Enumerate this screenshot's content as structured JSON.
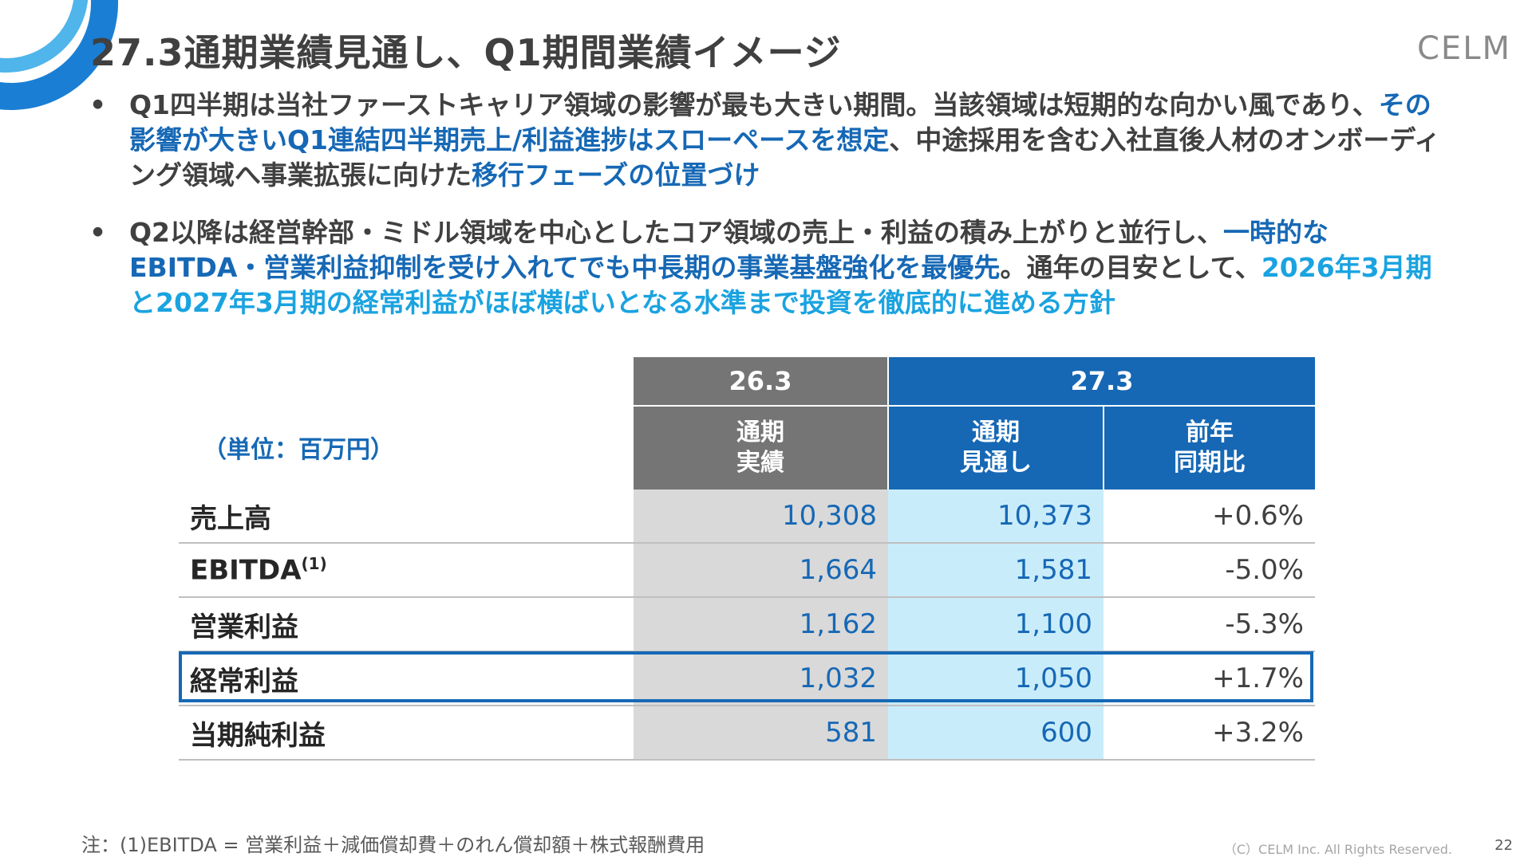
{
  "title": "27.3通期業績見通し、Q1期間業績イメージ",
  "logo_text": "CELM",
  "bullets": [
    {
      "marker": "•",
      "parts": [
        {
          "text": "Q1四半期は当社ファーストキャリア領域の影響が最も大きい期間。当該領域は短期的な向かい風であり、",
          "style": "normal"
        },
        {
          "text": "その影響が大きいQ1連結四半期売上/利益進捗はスローペースを想定",
          "style": "dark"
        },
        {
          "text": "、中途採用を含む入社直後人材のオンボーディング領域へ事業拡張に向けた",
          "style": "normal"
        },
        {
          "text": "移行フェーズの位置づけ",
          "style": "dark"
        }
      ]
    },
    {
      "marker": "•",
      "parts": [
        {
          "text": " Q2以降は経営幹部・ミドル領域を中心としたコア領域の売上・利益の積み上がりと並行し、",
          "style": "normal"
        },
        {
          "text": "一時的なEBITDA・営業利益抑制を受け入れてでも中長期の事業基盤強化を最優先",
          "style": "dark"
        },
        {
          "text": "。通年の目安として、",
          "style": "normal"
        },
        {
          "text": "2026年3月期と2027年3月期の経常利益がほぼ横ばいとなる水準まで投資を徹底的に進める方針",
          "style": "light"
        }
      ]
    }
  ],
  "table": {
    "unit_label": "（単位：百万円）",
    "period_263": "26.3",
    "period_273": "27.3",
    "col_actual": [
      "通期",
      "実績"
    ],
    "col_forecast": [
      "通期",
      "見通し"
    ],
    "col_yoy": [
      "前年",
      "同期比"
    ],
    "rows": [
      {
        "label": "売上高",
        "note": "",
        "actual": "10,308",
        "forecast": "10,373",
        "yoy": "+0.6%"
      },
      {
        "label": "EBITDA",
        "note": "(1)",
        "actual": "1,664",
        "forecast": "1,581",
        "yoy": "-5.0%"
      },
      {
        "label": "営業利益",
        "note": "",
        "actual": "1,162",
        "forecast": "1,100",
        "yoy": "-5.3%"
      },
      {
        "label": "経常利益",
        "note": "",
        "actual": "1,032",
        "forecast": "1,050",
        "yoy": "+1.7%"
      },
      {
        "label": "当期純利益",
        "note": "",
        "actual": "581",
        "forecast": "600",
        "yoy": "+3.2%"
      }
    ]
  },
  "footnote": "注：(1)EBITDA = 営業利益＋減価償却費＋のれん償却額＋株式報酬費用",
  "copyright": "（C）CELM Inc. All Rights Reserved.",
  "page_number": "22",
  "colors": {
    "accent_dark": "#1668b5",
    "accent_light": "#1aa3e0",
    "header_gray": "#757575"
  }
}
